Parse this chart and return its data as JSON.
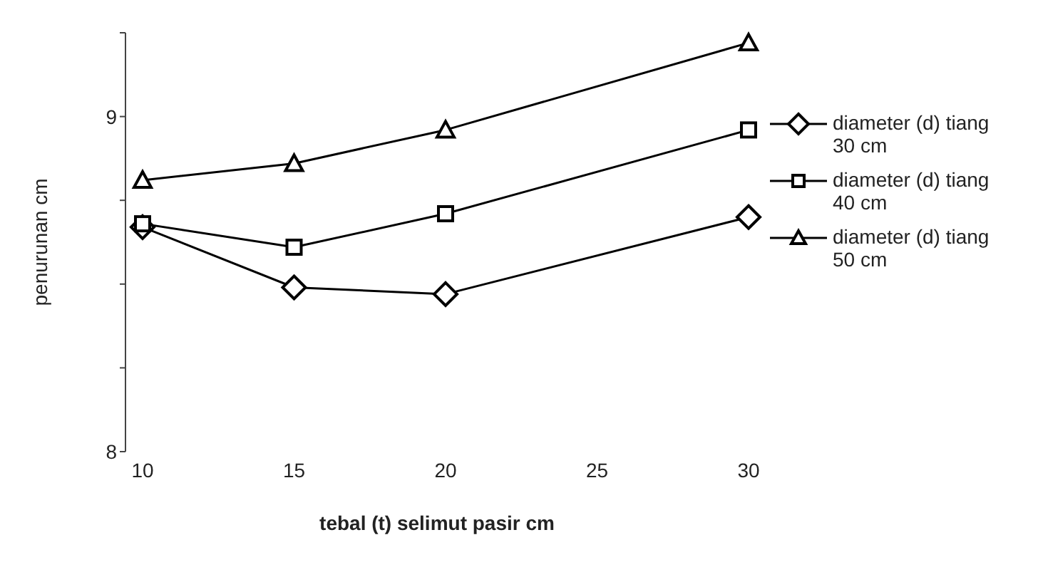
{
  "chart_data": {
    "type": "line",
    "xlabel": "tebal (t) selimut pasir cm",
    "ylabel": "penurunan cm",
    "x": [
      10,
      15,
      20,
      30
    ],
    "series": [
      {
        "name": "diameter (d) tiang 30 cm",
        "color": "#000000",
        "marker": "diamond",
        "values": [
          8.67,
          8.49,
          8.47,
          8.7
        ]
      },
      {
        "name": "diameter (d) tiang 40 cm",
        "color": "#000000",
        "marker": "square",
        "values": [
          8.68,
          8.61,
          8.71,
          8.96
        ]
      },
      {
        "name": "diameter (d) tiang 50 cm",
        "color": "#000000",
        "marker": "triangle",
        "values": [
          8.81,
          8.86,
          8.96,
          9.22
        ]
      }
    ],
    "xlim": [
      10,
      30
    ],
    "xticks": [
      10,
      15,
      20,
      25,
      30
    ],
    "ylim": [
      8,
      9.25
    ],
    "yticks": [
      8,
      {
        "value": 8.25,
        "label": null
      },
      {
        "value": 8.5,
        "label": null
      },
      {
        "value": 8.75,
        "label": null
      },
      9,
      {
        "value": 9.25,
        "label": null
      }
    ],
    "grid": false,
    "legend": "right",
    "line_style": "solid"
  }
}
